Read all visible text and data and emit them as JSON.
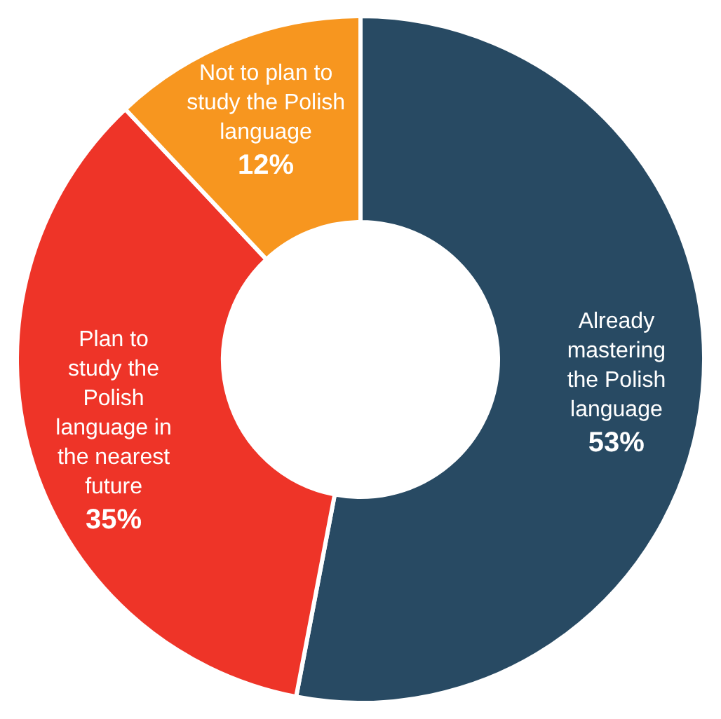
{
  "chart_data": {
    "type": "donut",
    "categories": [
      "Already mastering the Polish language",
      "Plan to study the Polish language in the nearest future",
      "Not to plan to study the Polish language"
    ],
    "values": [
      53,
      35,
      12
    ],
    "colors": [
      "#284a63",
      "#ee3428",
      "#f7961f"
    ],
    "value_labels": [
      "53%",
      "35%",
      "12%"
    ],
    "legend": false
  }
}
